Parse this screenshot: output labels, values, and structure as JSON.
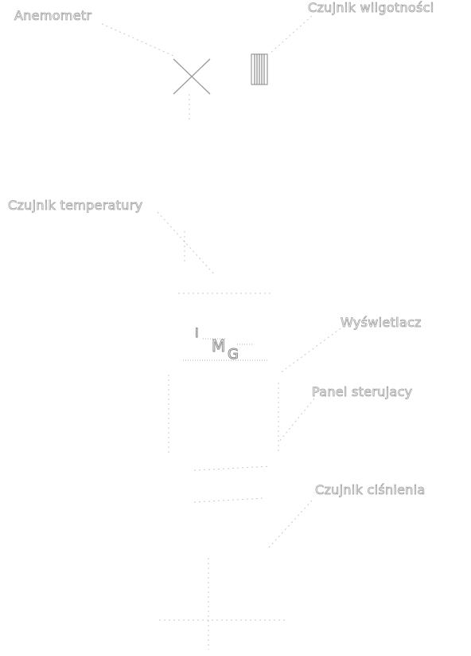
{
  "labels": {
    "anemometer": "Anemometr",
    "humidity_sensor": "Czujnik wilgotności",
    "temperature_sensor": "Czujnik temperatury",
    "display": "Wyświetlacz",
    "control_panel": "Panel sterujacy",
    "pressure_sensor": "Czujnik ciśnienia"
  },
  "display_glyphs": {
    "first": "I",
    "second": "M",
    "third": "G"
  },
  "colors": {
    "outline": "#a0a0a0",
    "background": "#ffffff"
  }
}
